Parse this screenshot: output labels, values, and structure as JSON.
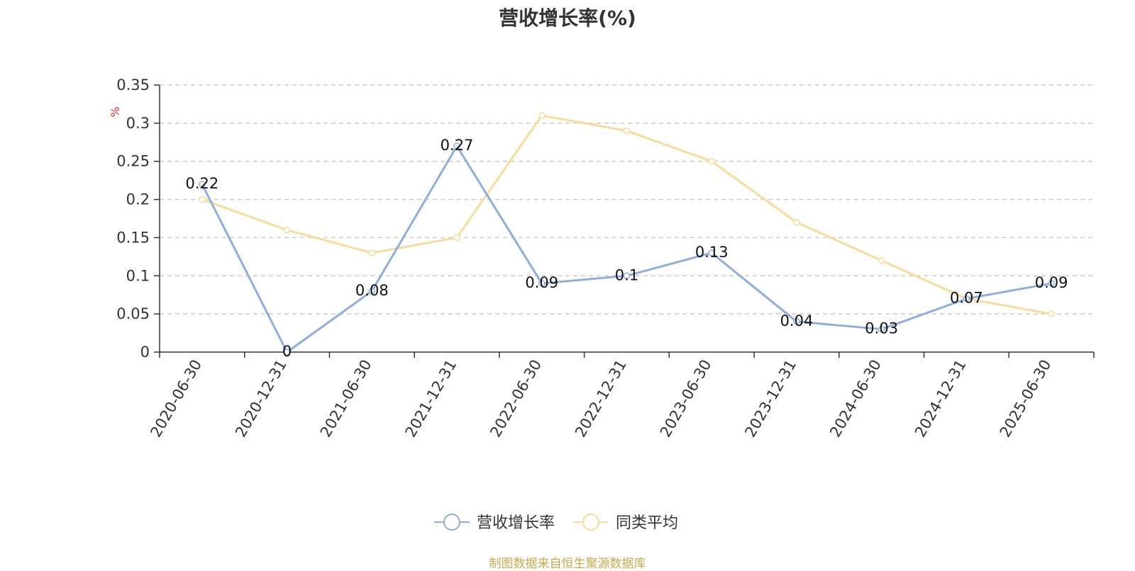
{
  "title": "营收增长率(%)",
  "source": "制图数据来自恒生聚源数据库",
  "chart_data": {
    "type": "line",
    "title": "营收增长率(%)",
    "ylabel": "%",
    "xlabel": "",
    "categories": [
      "2020-06-30",
      "2020-12-31",
      "2021-06-30",
      "2021-12-31",
      "2022-06-30",
      "2022-12-31",
      "2023-06-30",
      "2023-12-31",
      "2024-06-30",
      "2024-12-31",
      "2025-06-30"
    ],
    "y_ticks": [
      "0",
      "0.05",
      "0.1",
      "0.15",
      "0.2",
      "0.25",
      "0.3",
      "0.35"
    ],
    "ylim": [
      0,
      0.35
    ],
    "grid": true,
    "legend_position": "bottom-center",
    "series": [
      {
        "name": "营收增长率",
        "color": "#8eaedb",
        "show_labels": true,
        "values": [
          0.22,
          0,
          0.08,
          0.27,
          0.09,
          0.1,
          0.13,
          0.04,
          0.03,
          0.07,
          0.09
        ]
      },
      {
        "name": "同类平均",
        "color": "#f9dc9b",
        "show_labels": false,
        "values": [
          0.2,
          0.16,
          0.13,
          0.15,
          0.31,
          0.29,
          0.25,
          0.17,
          0.12,
          0.07,
          0.05
        ]
      }
    ]
  }
}
